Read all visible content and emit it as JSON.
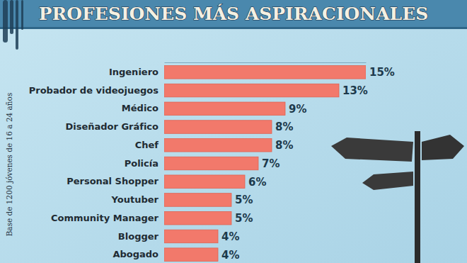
{
  "chart_data": {
    "type": "bar",
    "title": "PROFESIONES MÁS ASPIRACIONALES",
    "subtitle": "Base de 1200 jóvenes de 16 a 24 años",
    "orientation": "horizontal",
    "categories": [
      "Ingeniero",
      "Probador de videojuegos",
      "Médico",
      "Diseñador Gráfico",
      "Chef",
      "Policía",
      "Personal Shopper",
      "Youtuber",
      "Community Manager",
      "Blogger",
      "Abogado"
    ],
    "values": [
      15,
      13,
      9,
      8,
      8,
      7,
      6,
      5,
      5,
      4,
      4
    ],
    "value_labels": [
      "15%",
      "13%",
      "9%",
      "8%",
      "8%",
      "7%",
      "6%",
      "5%",
      "5%",
      "4%",
      "4%"
    ],
    "color": "#f2796b",
    "xlim": [
      0,
      15
    ],
    "xticks": [],
    "data_labels": true,
    "tick_labels": "y",
    "grid": false
  }
}
